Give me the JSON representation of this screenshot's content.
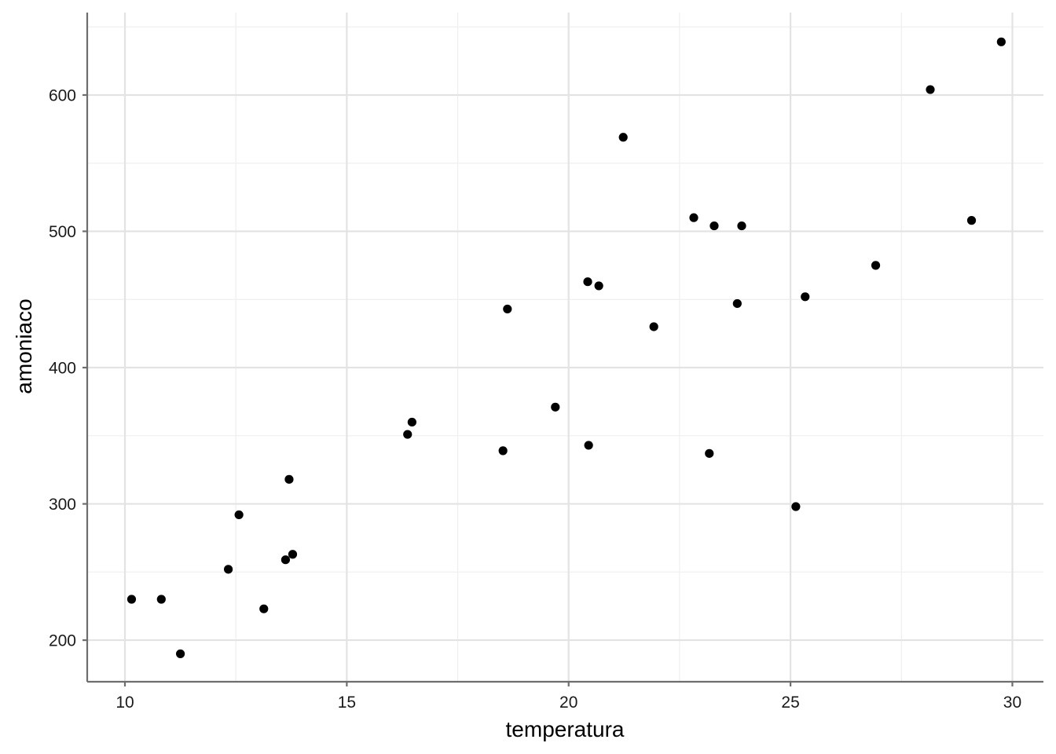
{
  "chart_data": {
    "type": "scatter",
    "title": "",
    "xlabel": "temperatura",
    "ylabel": "amoniaco",
    "xlim": [
      9.15,
      30.7
    ],
    "ylim": [
      169.5,
      660.5
    ],
    "x_major_ticks": [
      10,
      15,
      20,
      25,
      30
    ],
    "x_minor_ticks": [
      12.5,
      17.5,
      22.5,
      27.5
    ],
    "y_major_ticks": [
      200,
      300,
      400,
      500,
      600
    ],
    "y_minor_ticks": [
      250,
      350,
      450,
      550,
      650
    ],
    "x_tick_labels": [
      "10",
      "15",
      "20",
      "25",
      "30"
    ],
    "y_tick_labels": [
      "200",
      "300",
      "400",
      "500",
      "600"
    ],
    "grid": true,
    "legend": "none",
    "point_color": "#000000",
    "points": [
      {
        "x": 10.15,
        "y": 230
      },
      {
        "x": 10.82,
        "y": 230
      },
      {
        "x": 11.25,
        "y": 190
      },
      {
        "x": 12.33,
        "y": 252
      },
      {
        "x": 12.57,
        "y": 292
      },
      {
        "x": 13.13,
        "y": 223
      },
      {
        "x": 13.62,
        "y": 259
      },
      {
        "x": 13.7,
        "y": 318
      },
      {
        "x": 13.78,
        "y": 263
      },
      {
        "x": 16.37,
        "y": 351
      },
      {
        "x": 16.47,
        "y": 360
      },
      {
        "x": 18.52,
        "y": 339
      },
      {
        "x": 18.62,
        "y": 443
      },
      {
        "x": 19.7,
        "y": 371
      },
      {
        "x": 20.43,
        "y": 463
      },
      {
        "x": 20.45,
        "y": 343
      },
      {
        "x": 20.68,
        "y": 460
      },
      {
        "x": 21.23,
        "y": 569
      },
      {
        "x": 21.92,
        "y": 430
      },
      {
        "x": 22.82,
        "y": 510
      },
      {
        "x": 23.17,
        "y": 337
      },
      {
        "x": 23.28,
        "y": 504
      },
      {
        "x": 23.8,
        "y": 447
      },
      {
        "x": 23.9,
        "y": 504
      },
      {
        "x": 25.12,
        "y": 298
      },
      {
        "x": 25.33,
        "y": 452
      },
      {
        "x": 26.92,
        "y": 475
      },
      {
        "x": 28.15,
        "y": 604
      },
      {
        "x": 29.08,
        "y": 508
      },
      {
        "x": 29.75,
        "y": 639
      }
    ]
  }
}
